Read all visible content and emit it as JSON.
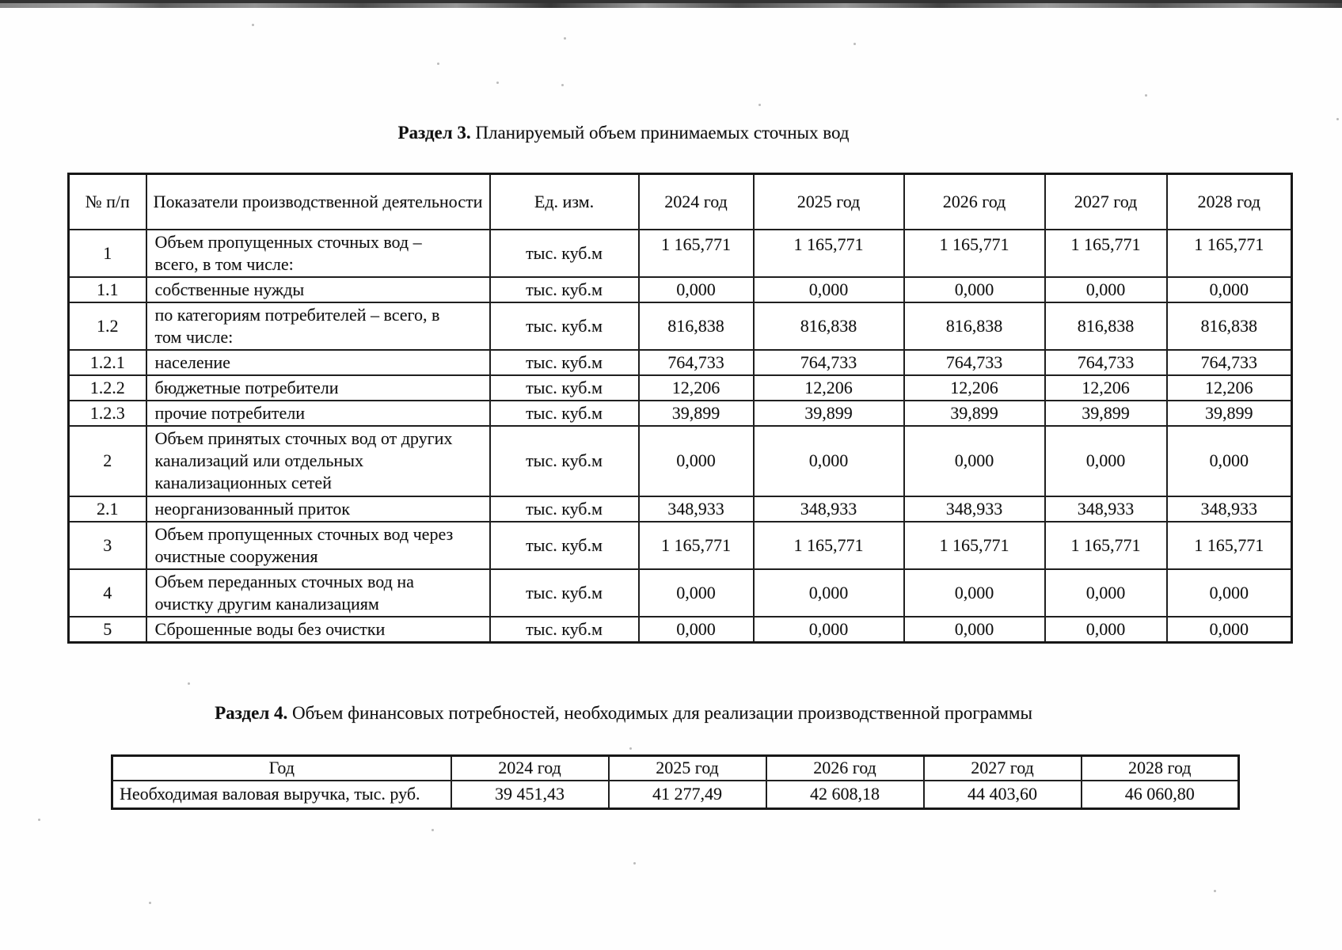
{
  "section3": {
    "title_bold": "Раздел 3.",
    "title_rest": " Планируемый объем принимаемых сточных вод"
  },
  "section4": {
    "title_bold": "Раздел 4.",
    "title_rest": " Объем финансовых потребностей, необходимых для реализации производственной программы"
  },
  "table1": {
    "headers": [
      "№ п/п",
      "Показатели производственной деятельности",
      "Ед. изм.",
      "2024 год",
      "2025 год",
      "2026 год",
      "2027 год",
      "2028 год"
    ],
    "rows": [
      {
        "num": "1",
        "name": "Объем пропущенных сточных вод – всего, в том числе:",
        "unit": "тыс. куб.м",
        "values": [
          "1 165,771",
          "1 165,771",
          "1 165,771",
          "1 165,771",
          "1 165,771"
        ]
      },
      {
        "num": "1.1",
        "name": "собственные нужды",
        "unit": "тыс. куб.м",
        "values": [
          "0,000",
          "0,000",
          "0,000",
          "0,000",
          "0,000"
        ]
      },
      {
        "num": "1.2",
        "name": "по категориям потребителей – всего, в том числе:",
        "unit": "тыс. куб.м",
        "values": [
          "816,838",
          "816,838",
          "816,838",
          "816,838",
          "816,838"
        ]
      },
      {
        "num": "1.2.1",
        "name": "население",
        "unit": "тыс. куб.м",
        "values": [
          "764,733",
          "764,733",
          "764,733",
          "764,733",
          "764,733"
        ]
      },
      {
        "num": "1.2.2",
        "name": "бюджетные потребители",
        "unit": "тыс. куб.м",
        "values": [
          "12,206",
          "12,206",
          "12,206",
          "12,206",
          "12,206"
        ]
      },
      {
        "num": "1.2.3",
        "name": "прочие потребители",
        "unit": "тыс. куб.м",
        "values": [
          "39,899",
          "39,899",
          "39,899",
          "39,899",
          "39,899"
        ]
      },
      {
        "num": "2",
        "name": "Объем принятых сточных вод от других канализаций или отдельных канализационных сетей",
        "unit": "тыс. куб.м",
        "values": [
          "0,000",
          "0,000",
          "0,000",
          "0,000",
          "0,000"
        ]
      },
      {
        "num": "2.1",
        "name": "неорганизованный приток",
        "unit": "тыс. куб.м",
        "values": [
          "348,933",
          "348,933",
          "348,933",
          "348,933",
          "348,933"
        ]
      },
      {
        "num": "3",
        "name": "Объем пропущенных сточных вод через очистные сооружения",
        "unit": "тыс. куб.м",
        "values": [
          "1 165,771",
          "1 165,771",
          "1 165,771",
          "1 165,771",
          "1 165,771"
        ]
      },
      {
        "num": "4",
        "name": "Объем переданных сточных вод на очистку другим канализациям",
        "unit": "тыс. куб.м",
        "values": [
          "0,000",
          "0,000",
          "0,000",
          "0,000",
          "0,000"
        ]
      },
      {
        "num": "5",
        "name": "Сброшенные воды без очистки",
        "unit": "тыс. куб.м",
        "values": [
          "0,000",
          "0,000",
          "0,000",
          "0,000",
          "0,000"
        ]
      }
    ]
  },
  "table2": {
    "headers": [
      "Год",
      "2024 год",
      "2025 год",
      "2026 год",
      "2027 год",
      "2028 год"
    ],
    "rows": [
      {
        "label": "Необходимая валовая выручка, тыс. руб.",
        "values": [
          "39 451,43",
          "41 277,49",
          "42 608,18",
          "44 403,60",
          "46 060,80"
        ]
      }
    ]
  }
}
